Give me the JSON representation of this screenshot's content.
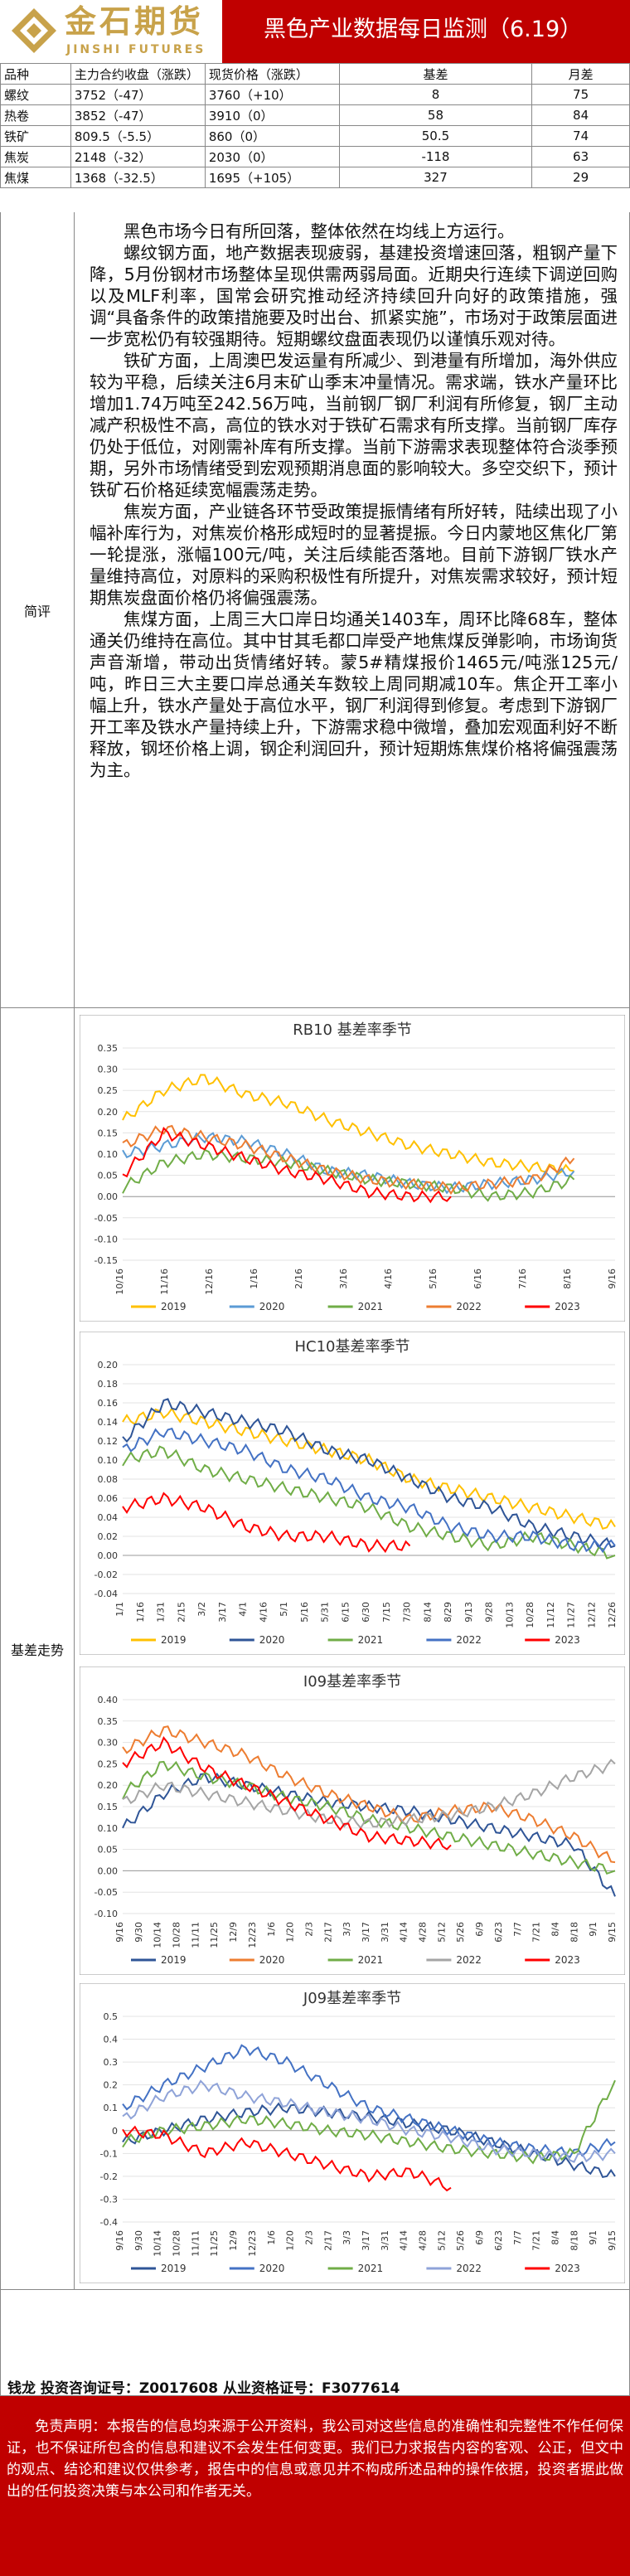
{
  "header": {
    "logo_cn": "金石期货",
    "logo_en": "JINSHI FUTURES",
    "title": "黑色产业数据每日监测（6.19）"
  },
  "table": {
    "headers": [
      "品种",
      "主力合约收盘（涨跌）",
      "现货价格（涨跌）",
      "基差",
      "月差"
    ],
    "rows": [
      [
        "螺纹",
        "3752（-47）",
        "3760（+10）",
        "8",
        "75"
      ],
      [
        "热卷",
        "3852（-47）",
        "3910（0）",
        "58",
        "84"
      ],
      [
        "铁矿",
        "809.5（-5.5）",
        "860（0）",
        "50.5",
        "74"
      ],
      [
        "焦炭",
        "2148（-32）",
        "2030（0）",
        "-118",
        "63"
      ],
      [
        "焦煤",
        "1368（-32.5）",
        "1695（+105）",
        "327",
        "29"
      ]
    ]
  },
  "commentary": {
    "label": "简评",
    "paragraphs": [
      "黑色市场今日有所回落，整体依然在均线上方运行。",
      "螺纹钢方面，地产数据表现疲弱，基建投资增速回落，粗钢产量下降，5月份钢材市场整体呈现供需两弱局面。近期央行连续下调逆回购以及MLF利率，国常会研究推动经济持续回升向好的政策措施，强调“具备条件的政策措施要及时出台、抓紧实施”，市场对于政策层面进一步宽松仍有较强期待。短期螺纹盘面表现仍以谨慎乐观对待。",
      "铁矿方面，上周澳巴发运量有所减少、到港量有所增加，海外供应较为平稳，后续关注6月末矿山季末冲量情况。需求端，铁水产量环比增加1.74万吨至242.56万吨，当前钢厂钢厂利润有所修复，钢厂主动减产积极性不高，高位的铁水对于铁矿石需求有所支撑。当前钢厂库存仍处于低位，对刚需补库有所支撑。当前下游需求表现整体符合淡季预期，另外市场情绪受到宏观预期消息面的影响较大。多空交织下，预计铁矿石价格延续宽幅震荡走势。",
      "焦炭方面，产业链各环节受政策提振情绪有所好转，陆续出现了小幅补库行为，对焦炭价格形成短时的显著提振。今日内蒙地区焦化厂第一轮提涨，涨幅100元/吨，关注后续能否落地。目前下游钢厂铁水产量维持高位，对原料的采购积极性有所提升，对焦炭需求较好，预计短期焦炭盘面价格仍将偏强震荡。",
      "焦煤方面，上周三大口岸日均通关1403车，周环比降68车，整体通关仍维持在高位。其中甘其毛都口岸受产地焦煤反弹影响，市场询货声音渐增，带动出货情绪好转。蒙5#精煤报价1465元/吨涨125元/吨，昨日三大主要口岸总通关车数较上周同期减10车。焦企开工率小幅上升，铁水产量处于高位水平，钢厂利润得到修复。考虑到下游钢厂开工率及铁水产量持续上升，下游需求稳中微增，叠加宏观面利好不断释放，钢坯价格上调，钢企利润回升，预计短期炼焦煤价格将偏强震荡为主。"
    ]
  },
  "basis_label": "基差走势",
  "chart_data": [
    {
      "type": "line",
      "title": "RB10 基差率季节",
      "ylim": [
        -0.15,
        0.35
      ],
      "yticks": [
        "0.35",
        "0.30",
        "0.25",
        "0.20",
        "0.15",
        "0.10",
        "0.05",
        "0.00",
        "-0.05",
        "-0.10",
        "-0.15"
      ],
      "xticks": [
        "10/16",
        "11/16",
        "12/16",
        "1/16",
        "2/16",
        "3/16",
        "4/16",
        "5/16",
        "6/16",
        "7/16",
        "8/16",
        "9/16"
      ],
      "series": [
        {
          "name": "2019",
          "color": "#ffc000",
          "values": [
            0.18,
            0.25,
            0.28,
            0.24,
            0.22,
            0.18,
            0.15,
            0.12,
            0.1,
            0.08,
            0.07,
            0.06
          ]
        },
        {
          "name": "2020",
          "color": "#5b9bd5",
          "values": [
            0.1,
            0.12,
            0.14,
            0.13,
            0.1,
            0.06,
            0.05,
            0.03,
            0.02,
            0.03,
            0.04,
            0.06
          ]
        },
        {
          "name": "2021",
          "color": "#70ad47",
          "values": [
            0.02,
            0.08,
            0.1,
            0.09,
            0.08,
            0.06,
            0.04,
            0.03,
            0.02,
            0.0,
            0.01,
            0.04
          ]
        },
        {
          "name": "2022",
          "color": "#ed7d31",
          "values": [
            0.12,
            0.16,
            0.14,
            0.12,
            0.09,
            0.06,
            0.04,
            0.03,
            0.02,
            0.03,
            0.04,
            0.09
          ]
        },
        {
          "name": "2023",
          "color": "#ff0000",
          "values": [
            0.05,
            0.15,
            0.12,
            0.09,
            0.06,
            0.04,
            0.01,
            0.0,
            0.0
          ]
        }
      ]
    },
    {
      "type": "line",
      "title": "HC10基差率季节",
      "ylim": [
        -0.04,
        0.2
      ],
      "yticks": [
        "0.20",
        "0.18",
        "0.16",
        "0.14",
        "0.12",
        "0.10",
        "0.08",
        "0.06",
        "0.04",
        "0.02",
        "0.00",
        "-0.02",
        "-0.04"
      ],
      "xticks": [
        "1/1",
        "1/16",
        "1/31",
        "2/15",
        "3/2",
        "3/17",
        "4/1",
        "4/16",
        "5/1",
        "5/16",
        "5/31",
        "6/15",
        "6/30",
        "7/15",
        "7/30",
        "8/14",
        "8/29",
        "9/13",
        "9/28",
        "10/13",
        "10/28",
        "11/12",
        "11/27",
        "12/12",
        "12/26"
      ],
      "series": [
        {
          "name": "2019",
          "color": "#ffc000",
          "values": [
            0.14,
            0.15,
            0.14,
            0.13,
            0.12,
            0.11,
            0.1,
            0.08,
            0.07,
            0.06,
            0.05,
            0.04,
            0.03
          ]
        },
        {
          "name": "2020",
          "color": "#2f5597",
          "values": [
            0.12,
            0.16,
            0.15,
            0.14,
            0.13,
            0.11,
            0.1,
            0.08,
            0.06,
            0.05,
            0.03,
            0.02,
            0.01
          ]
        },
        {
          "name": "2021",
          "color": "#70ad47",
          "values": [
            0.1,
            0.11,
            0.09,
            0.08,
            0.07,
            0.06,
            0.05,
            0.03,
            0.02,
            0.01,
            0.02,
            0.01,
            0.0
          ]
        },
        {
          "name": "2022",
          "color": "#4472c4",
          "values": [
            0.11,
            0.13,
            0.12,
            0.11,
            0.09,
            0.08,
            0.06,
            0.05,
            0.03,
            0.02,
            0.02,
            0.01,
            0.01
          ]
        },
        {
          "name": "2023",
          "color": "#ff0000",
          "values": [
            0.05,
            0.06,
            0.05,
            0.03,
            0.02,
            0.02,
            0.01,
            0.01
          ]
        }
      ]
    },
    {
      "type": "line",
      "title": "I09基差率季节",
      "ylim": [
        -0.1,
        0.4
      ],
      "yticks": [
        "0.40",
        "0.35",
        "0.30",
        "0.25",
        "0.20",
        "0.15",
        "0.10",
        "0.05",
        "0.00",
        "-0.05",
        "-0.10"
      ],
      "xticks": [
        "9/16",
        "9/30",
        "10/14",
        "10/28",
        "11/11",
        "11/25",
        "12/9",
        "12/23",
        "1/6",
        "1/20",
        "2/3",
        "2/17",
        "3/3",
        "3/17",
        "3/31",
        "4/14",
        "4/28",
        "5/12",
        "5/26",
        "6/9",
        "6/23",
        "7/7",
        "7/21",
        "8/4",
        "8/18",
        "9/1",
        "9/15"
      ],
      "series": [
        {
          "name": "2019",
          "color": "#2f5597",
          "values": [
            0.1,
            0.18,
            0.22,
            0.2,
            0.18,
            0.16,
            0.15,
            0.14,
            0.12,
            0.1,
            0.08,
            0.06,
            -0.06
          ]
        },
        {
          "name": "2020",
          "color": "#ed7d31",
          "values": [
            0.28,
            0.33,
            0.3,
            0.27,
            0.22,
            0.18,
            0.15,
            0.12,
            0.14,
            0.15,
            0.12,
            0.08,
            0.02
          ]
        },
        {
          "name": "2021",
          "color": "#70ad47",
          "values": [
            0.18,
            0.25,
            0.22,
            0.2,
            0.17,
            0.15,
            0.12,
            0.1,
            0.08,
            0.06,
            0.04,
            0.02,
            0.0
          ]
        },
        {
          "name": "2022",
          "color": "#a5a5a5",
          "values": [
            0.16,
            0.2,
            0.18,
            0.16,
            0.14,
            0.12,
            0.11,
            0.12,
            0.13,
            0.15,
            0.18,
            0.22,
            0.25
          ]
        },
        {
          "name": "2023",
          "color": "#ff0000",
          "values": [
            0.25,
            0.3,
            0.24,
            0.2,
            0.16,
            0.12,
            0.08,
            0.07,
            0.06
          ]
        }
      ]
    },
    {
      "type": "line",
      "title": "J09基差率季节",
      "ylim": [
        -0.4,
        0.5
      ],
      "yticks": [
        "0.5",
        "0.4",
        "0.3",
        "0.2",
        "0.1",
        "0",
        "-0.1",
        "-0.2",
        "-0.3",
        "-0.4"
      ],
      "xticks": [
        "9/16",
        "9/30",
        "10/14",
        "10/28",
        "11/11",
        "11/25",
        "12/9",
        "12/23",
        "1/6",
        "1/20",
        "2/3",
        "2/17",
        "3/3",
        "3/17",
        "3/31",
        "4/14",
        "4/28",
        "5/12",
        "5/26",
        "6/9",
        "6/23",
        "7/7",
        "7/21",
        "8/4",
        "8/18",
        "9/1",
        "9/15"
      ],
      "series": [
        {
          "name": "2019",
          "color": "#2f5597",
          "values": [
            -0.05,
            0.0,
            0.05,
            0.08,
            0.1,
            0.08,
            0.06,
            0.03,
            0.0,
            -0.05,
            -0.1,
            -0.15,
            -0.2
          ]
        },
        {
          "name": "2020",
          "color": "#4472c4",
          "values": [
            0.1,
            0.2,
            0.28,
            0.36,
            0.3,
            0.2,
            0.1,
            0.05,
            0.0,
            -0.05,
            -0.08,
            -0.1,
            -0.05
          ]
        },
        {
          "name": "2021",
          "color": "#70ad47",
          "values": [
            -0.05,
            0.0,
            0.02,
            0.05,
            0.03,
            0.0,
            -0.02,
            -0.05,
            -0.08,
            -0.1,
            -0.12,
            -0.1,
            0.22
          ]
        },
        {
          "name": "2022",
          "color": "#8fa3d8",
          "values": [
            0.05,
            0.15,
            0.2,
            0.15,
            0.12,
            0.08,
            0.05,
            0.0,
            -0.03,
            -0.08,
            -0.1,
            -0.12,
            -0.1
          ]
        },
        {
          "name": "2023",
          "color": "#ff0000",
          "values": [
            0.0,
            -0.02,
            -0.1,
            -0.05,
            -0.1,
            -0.15,
            -0.2,
            -0.18,
            -0.25
          ]
        }
      ]
    }
  ],
  "analyst": "钱龙 投资咨询证号：Z0017608 从业资格证号：F3077614",
  "disclaimer": "免责声明：本报告的信息均来源于公开资料，我公司对这些信息的准确性和完整性不作任何保证，也不保证所包含的信息和建议不会发生任何变更。我们已力求报告内容的客观、公正，但文中的观点、结论和建议仅供参考，报告中的信息或意见并不构成所述品种的操作依据，投资者据此做出的任何投资决策与本公司和作者无关。"
}
